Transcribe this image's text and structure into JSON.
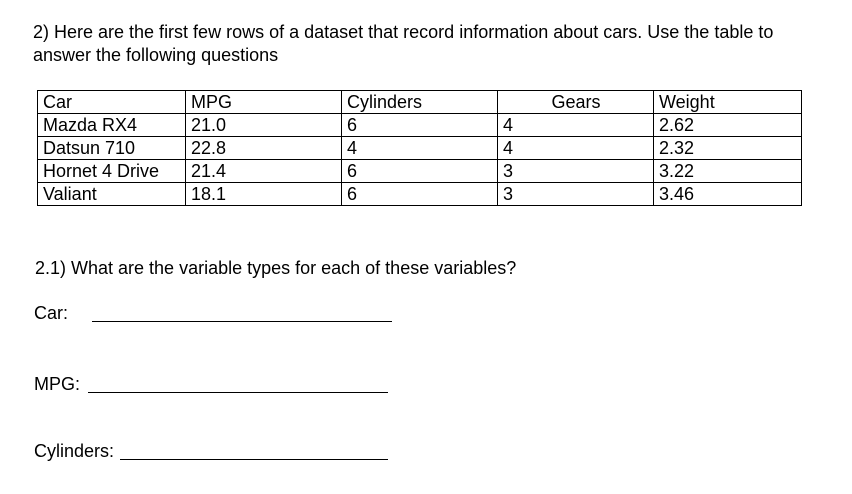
{
  "question": {
    "text": "2) Here are the first few rows of a dataset that record information about cars. Use the table to answer the following questions"
  },
  "table": {
    "headers": [
      "Car",
      "MPG",
      "Cylinders",
      "Gears",
      "Weight"
    ],
    "rows": [
      [
        "Mazda RX4",
        "21.0",
        "6",
        "4",
        "2.62"
      ],
      [
        "Datsun 710",
        "22.8",
        "4",
        "4",
        "2.32"
      ],
      [
        "Hornet 4 Drive",
        "21.4",
        "6",
        "3",
        "3.22"
      ],
      [
        "Valiant",
        "18.1",
        "6",
        "3",
        "3.46"
      ]
    ]
  },
  "subquestion": {
    "text": "2.1) What are the variable types for each of these variables?"
  },
  "answers": [
    {
      "label": "Car:"
    },
    {
      "label": "MPG:"
    },
    {
      "label": "Cylinders:"
    }
  ]
}
